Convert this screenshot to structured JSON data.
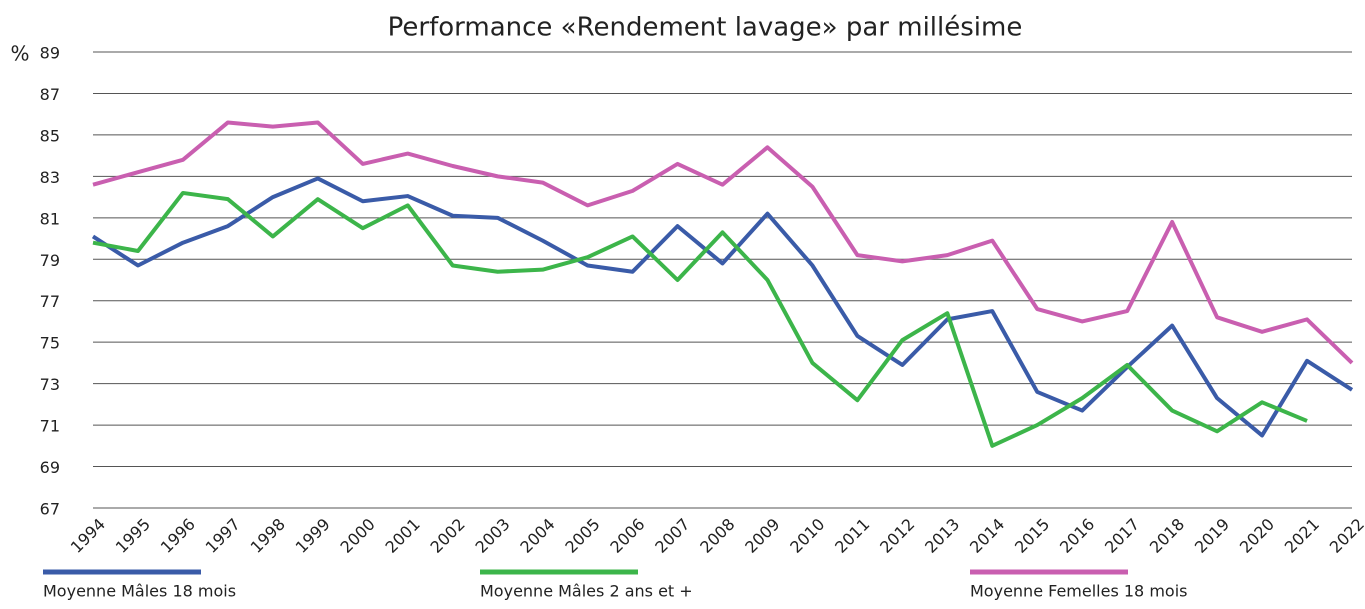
{
  "chart_data": {
    "type": "line",
    "title": "Performance «Rendement lavage» par millésime",
    "y_label": "%",
    "categories": [
      "1994",
      "1995",
      "1996",
      "1997",
      "1998",
      "1999",
      "2000",
      "2001",
      "2002",
      "2003",
      "2004",
      "2005",
      "2006",
      "2007",
      "2008",
      "2009",
      "2010",
      "2011",
      "2012",
      "2013",
      "2014",
      "2015",
      "2016",
      "2017",
      "2018",
      "2019",
      "2020",
      "2021",
      "2022"
    ],
    "series": [
      {
        "name": "Moyenne Mâles 18 mois",
        "color": "#3a5ba8",
        "values": [
          80.1,
          78.7,
          79.8,
          80.6,
          82.0,
          82.9,
          81.8,
          82.05,
          81.1,
          81.0,
          79.9,
          78.7,
          78.4,
          80.6,
          78.8,
          81.2,
          78.7,
          75.3,
          73.9,
          76.1,
          76.5,
          72.6,
          71.7,
          73.8,
          75.8,
          72.3,
          70.5,
          74.1,
          72.7
        ]
      },
      {
        "name": "Moyenne Mâles 2 ans et +",
        "color": "#3cb54a",
        "values": [
          79.8,
          79.4,
          82.2,
          81.9,
          80.1,
          81.9,
          80.5,
          81.6,
          78.7,
          78.4,
          78.5,
          79.1,
          80.1,
          78.0,
          80.3,
          78.0,
          74.0,
          72.2,
          75.1,
          76.4,
          70.0,
          71.0,
          72.3,
          73.9,
          71.7,
          70.7,
          72.1,
          71.2,
          null
        ]
      },
      {
        "name": "Moyenne Femelles 18 mois",
        "color": "#c95fb0",
        "values": [
          82.6,
          83.2,
          83.8,
          85.6,
          85.4,
          85.6,
          83.6,
          84.1,
          83.5,
          83.0,
          82.7,
          81.6,
          82.3,
          83.6,
          82.6,
          84.4,
          82.5,
          79.2,
          78.9,
          79.2,
          79.9,
          76.6,
          76.0,
          76.5,
          80.8,
          76.2,
          75.5,
          76.1,
          74.0
        ]
      }
    ],
    "ylim": [
      67,
      89
    ],
    "yticks": [
      67,
      69,
      71,
      73,
      75,
      77,
      79,
      81,
      83,
      85,
      87,
      89
    ],
    "grid": true,
    "legend": "bottom"
  }
}
